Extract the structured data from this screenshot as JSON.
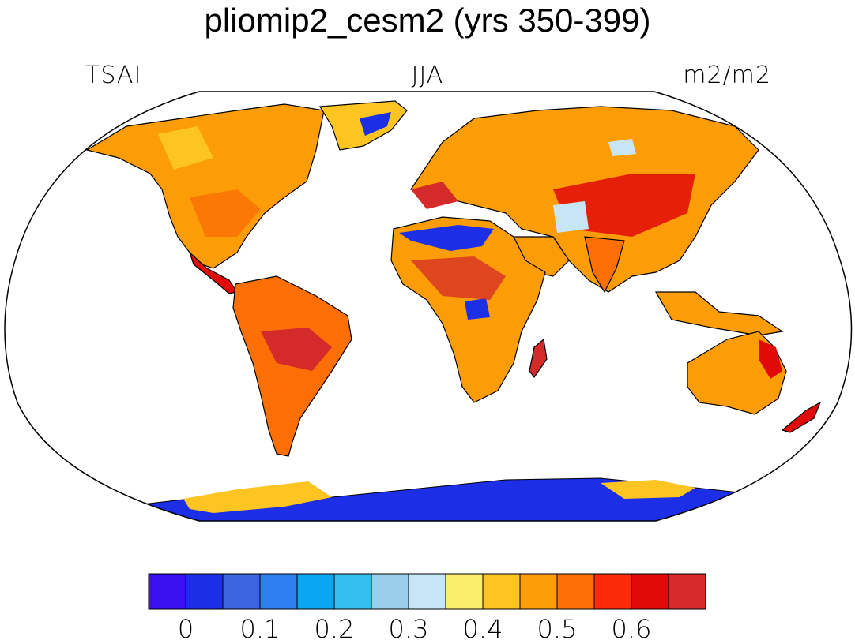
{
  "title": "pliomip2_cesm2 (yrs 350-399)",
  "left_label": "TSAI",
  "center_label": "JJA",
  "right_label": "m2/m2",
  "colorbar": {
    "colors": [
      "#3a10f0",
      "#1c2ee6",
      "#3d64e0",
      "#2e7ff0",
      "#0aa6f2",
      "#33bff0",
      "#9acfea",
      "#c7e6f5",
      "#fbee6a",
      "#fec421",
      "#fc9c06",
      "#fb6f05",
      "#fb2a07",
      "#e20a09",
      "#d42a2a"
    ],
    "tick_labels": [
      "0",
      "0.1",
      "0.2",
      "0.3",
      "0.4",
      "0.5",
      "0.6"
    ]
  }
}
